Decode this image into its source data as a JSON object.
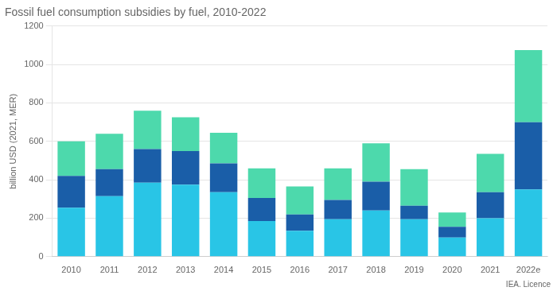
{
  "chart_data": {
    "type": "bar",
    "title": "Fossil fuel consumption subsidies by fuel, 2010-2022",
    "ylabel": "billion USD (2021, MER)",
    "categories": [
      "2010",
      "2011",
      "2012",
      "2013",
      "2014",
      "2015",
      "2016",
      "2017",
      "2018",
      "2019",
      "2020",
      "2021",
      "2022e"
    ],
    "series": [
      {
        "color": "#29C5E6",
        "values": [
          255,
          315,
          385,
          375,
          335,
          185,
          135,
          195,
          240,
          195,
          100,
          200,
          350
        ]
      },
      {
        "color": "#1A5EA8",
        "values": [
          165,
          140,
          175,
          175,
          150,
          120,
          85,
          100,
          150,
          70,
          55,
          135,
          350
        ]
      },
      {
        "color": "#4DD9AC",
        "values": [
          180,
          185,
          200,
          175,
          160,
          155,
          145,
          165,
          200,
          190,
          75,
          200,
          375
        ]
      }
    ],
    "stacked": true,
    "ylim": [
      0,
      1200
    ],
    "yticks": [
      0,
      200,
      400,
      600,
      800,
      1000,
      1200
    ],
    "grid": "y",
    "annotations": [
      "IEA. Licence"
    ]
  }
}
